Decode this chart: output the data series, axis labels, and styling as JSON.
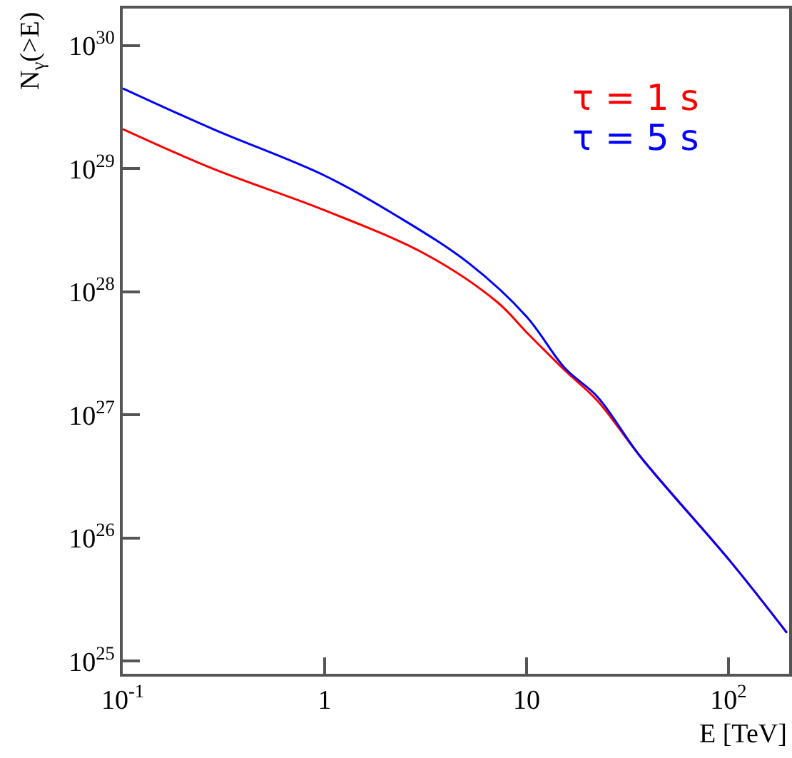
{
  "chart_data": {
    "type": "line",
    "xlabel": "E [TeV]",
    "ylabel": "N$_{γ}$(>E)",
    "log": "xy",
    "grid": false,
    "marker": "none",
    "line_style": "solid",
    "xlim": [
      0.1,
      200
    ],
    "ylim": [
      7.9e+24,
      2e+30
    ],
    "xticks": [
      {
        "value": 0.1,
        "label": "10$^{-1}$"
      },
      1,
      10,
      {
        "value": 100,
        "label": "10$^{2}$"
      }
    ],
    "yticks": [
      {
        "value": 1e+25,
        "label": "10$^{25}$"
      },
      {
        "value": 1e+26,
        "label": "10$^{26}$"
      },
      {
        "value": 1e+27,
        "label": "10$^{27}$"
      },
      {
        "value": 1e+28,
        "label": "10$^{28}$"
      },
      {
        "value": 1e+29,
        "label": "10$^{29}$"
      },
      {
        "value": 1e+30,
        "label": "10$^{30}$"
      }
    ],
    "series": [
      {
        "name": "τ = 1 s",
        "color": "#ff0000",
        "x": [
          0.1,
          0.28,
          1,
          3.2,
          7.2,
          10,
          15.5,
          22.5,
          36.6,
          102,
          195
        ],
        "values": [
          2.1e+29,
          1e+29,
          4.6e+28,
          2e+28,
          8.2e+27,
          4.7e+27,
          2.3e+27,
          1.3e+27,
          4.6e+26,
          6.5e+25,
          1.7e+25
        ]
      },
      {
        "name": "τ = 5 s",
        "color": "#0000ff",
        "x": [
          0.1,
          0.28,
          1,
          2.3,
          5.2,
          10,
          15.5,
          22.5,
          36.6,
          102,
          195
        ],
        "values": [
          4.5e+29,
          2.1e+29,
          8.8e+28,
          4.1e+28,
          1.7e+28,
          6.3e+27,
          2.4e+27,
          1.4e+27,
          4.6e+26,
          6.5e+25,
          1.7e+25
        ]
      }
    ]
  }
}
